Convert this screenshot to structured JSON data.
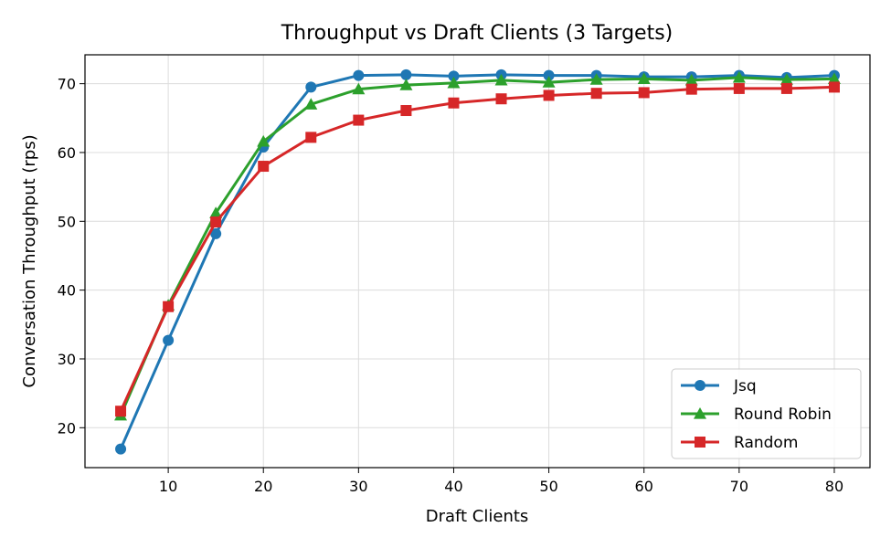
{
  "chart_data": {
    "type": "line",
    "title": "Throughput vs Draft Clients (3 Targets)",
    "xlabel": "Draft Clients",
    "ylabel": "Conversation Throughput (rps)",
    "x": [
      5,
      10,
      15,
      20,
      25,
      30,
      35,
      40,
      45,
      50,
      55,
      60,
      65,
      70,
      75,
      80
    ],
    "xlim": [
      1.25,
      83.75
    ],
    "ylim": [
      14.2,
      74.2
    ],
    "xticks": [
      10,
      20,
      30,
      40,
      50,
      60,
      70,
      80
    ],
    "yticks": [
      20,
      30,
      40,
      50,
      60,
      70
    ],
    "grid": true,
    "legend_position": "bottom-right",
    "series": [
      {
        "name": "Jsq",
        "color": "#1f77b4",
        "marker": "circle",
        "values": [
          16.9,
          32.7,
          48.2,
          60.8,
          69.5,
          71.2,
          71.3,
          71.1,
          71.3,
          71.2,
          71.2,
          71.0,
          71.0,
          71.2,
          70.9,
          71.2
        ]
      },
      {
        "name": "Round Robin",
        "color": "#2ca02c",
        "marker": "triangle",
        "values": [
          21.8,
          37.8,
          51.2,
          61.6,
          67.0,
          69.2,
          69.8,
          70.1,
          70.5,
          70.2,
          70.6,
          70.7,
          70.5,
          70.9,
          70.6,
          70.7
        ]
      },
      {
        "name": "Random",
        "color": "#d62728",
        "marker": "square",
        "values": [
          22.4,
          37.6,
          49.9,
          58.0,
          62.2,
          64.7,
          66.1,
          67.2,
          67.8,
          68.3,
          68.6,
          68.7,
          69.2,
          69.3,
          69.3,
          69.5
        ]
      }
    ]
  }
}
